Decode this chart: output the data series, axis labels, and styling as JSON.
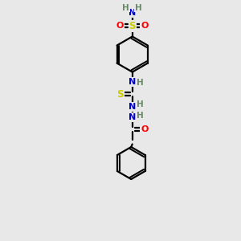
{
  "background_color": "#e8e8e8",
  "atom_colors": {
    "C": "#000000",
    "N": "#0000cd",
    "O": "#ff0000",
    "S": "#cccc00",
    "H": "#6a8a6a"
  },
  "bond_color": "#000000",
  "bond_width": 1.6,
  "figsize": [
    3.0,
    3.0
  ],
  "dpi": 100,
  "xlim": [
    0,
    10
  ],
  "ylim": [
    0,
    10
  ]
}
